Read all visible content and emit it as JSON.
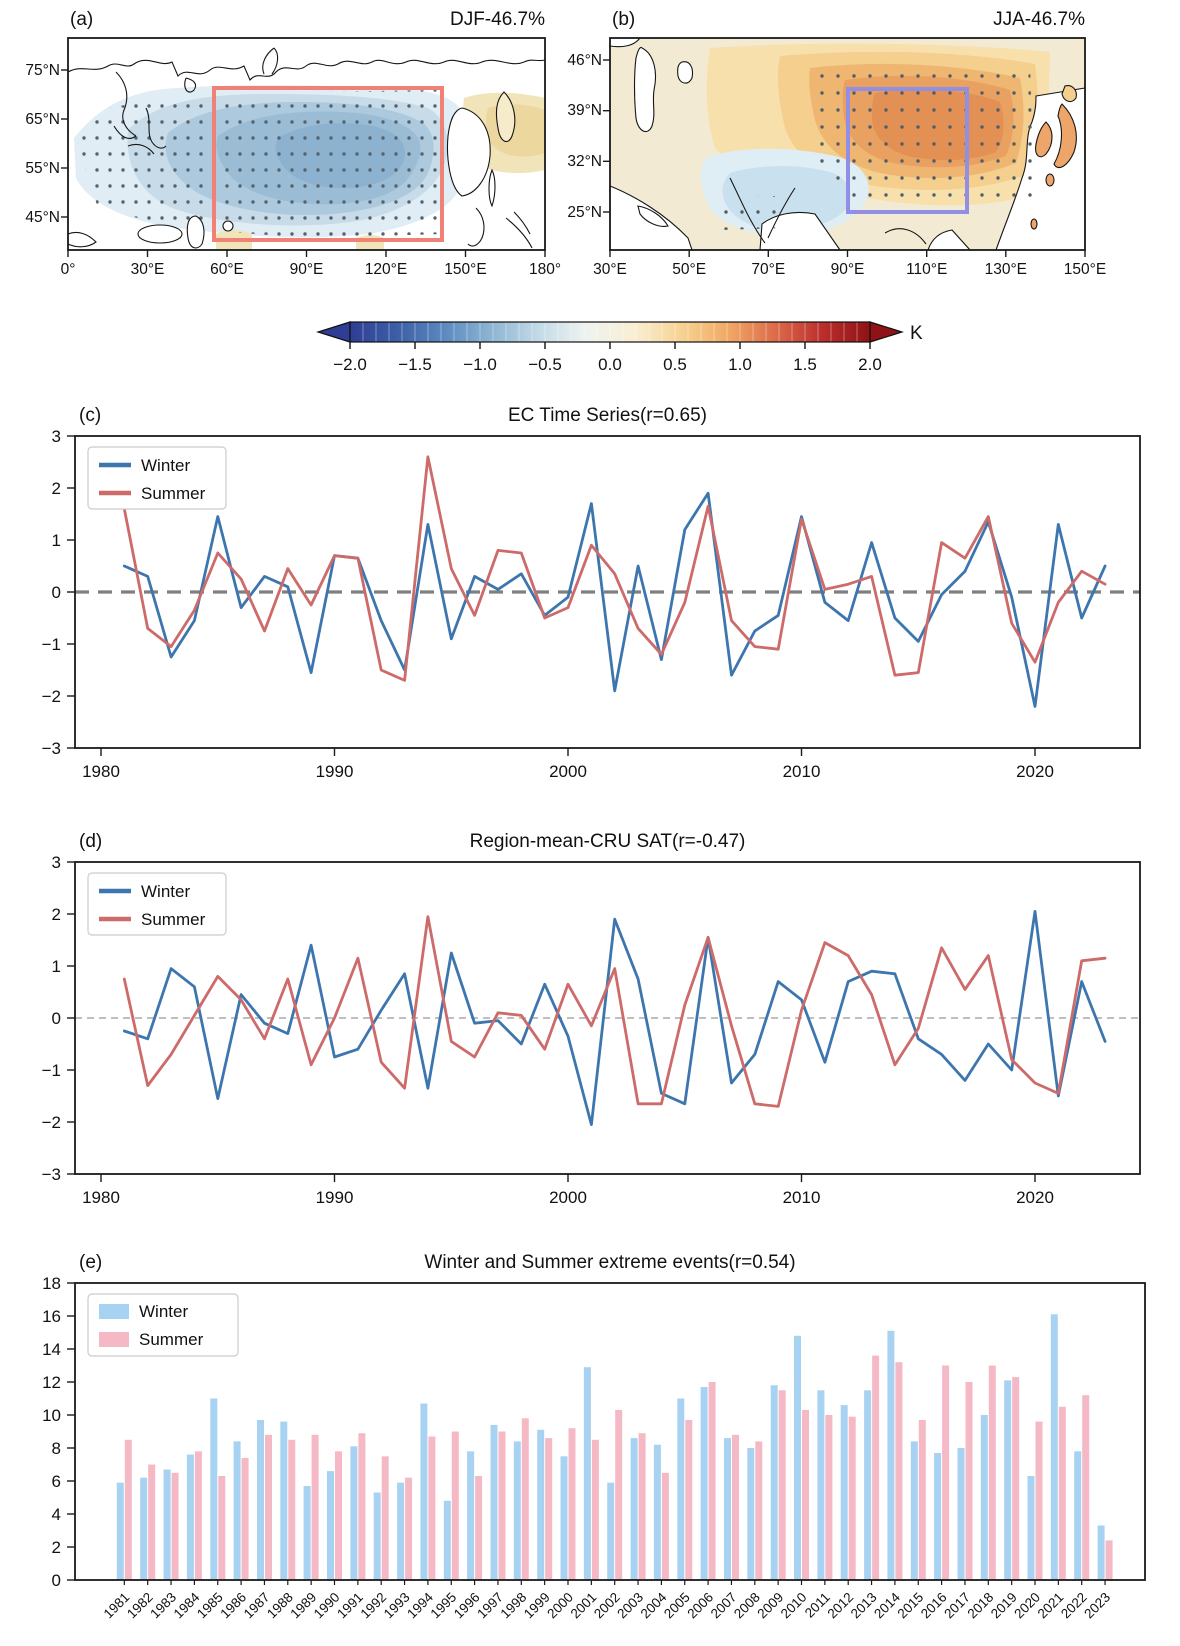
{
  "panel_a": {
    "label": "(a)",
    "title": "DJF-46.7%",
    "lat_ticks": [
      "75°N",
      "65°N",
      "55°N",
      "45°N"
    ],
    "lon_ticks": [
      "0°",
      "30°E",
      "60°E",
      "90°E",
      "120°E",
      "150°E",
      "180°"
    ],
    "box_color": "#ef8177",
    "shading": "negative (blue) temperature anomalies with stippling over central Eurasia"
  },
  "panel_b": {
    "label": "(b)",
    "title": "JJA-46.7%",
    "lat_ticks": [
      "46°N",
      "39°N",
      "32°N",
      "25°N"
    ],
    "lon_ticks": [
      "30°E",
      "50°E",
      "70°E",
      "90°E",
      "110°E",
      "130°E",
      "150°E"
    ],
    "box_color": "#908fe3",
    "shading": "positive (orange) temperature anomalies with stippling over East Asia"
  },
  "colorbar": {
    "tick_labels": [
      "−2.0",
      "−1.5",
      "−1.0",
      "−0.5",
      "0.0",
      "0.5",
      "1.0",
      "1.5",
      "2.0"
    ],
    "unit_label": "K",
    "colors": [
      "#2f3d94",
      "#3c5fa7",
      "#5c8ac0",
      "#8db5d3",
      "#c4dbe8",
      "#eef3f0",
      "#faeed5",
      "#f7d394",
      "#f0a964",
      "#dd6a4a",
      "#bb2e2c",
      "#8f1216"
    ]
  },
  "chart_data": [
    {
      "type": "line",
      "panel_label": "(c)",
      "title": "EC Time Series(r=0.65)",
      "xlabel": "",
      "ylabel": "",
      "x": [
        1981,
        1982,
        1983,
        1984,
        1985,
        1986,
        1987,
        1988,
        1989,
        1990,
        1991,
        1992,
        1993,
        1994,
        1995,
        1996,
        1997,
        1998,
        1999,
        2000,
        2001,
        2002,
        2003,
        2004,
        2005,
        2006,
        2007,
        2008,
        2009,
        2010,
        2011,
        2012,
        2013,
        2014,
        2015,
        2016,
        2017,
        2018,
        2019,
        2020,
        2021,
        2022,
        2023
      ],
      "xticks": [
        1980,
        1990,
        2000,
        2010,
        2020
      ],
      "xtick_labels": [
        "1980",
        "1990",
        "2000",
        "2010",
        "2020"
      ],
      "ylim": [
        -3,
        3
      ],
      "yticks": [
        3,
        2,
        1,
        0,
        -1,
        -2,
        -3
      ],
      "ytick_labels": [
        "3",
        "2",
        "1",
        "0",
        "−1",
        "−2",
        "−3"
      ],
      "zero_line": {
        "style": "dashed",
        "color": "#7f7f7f",
        "width": 3.2
      },
      "legend_position": "upper-left",
      "series": [
        {
          "name": "Winter",
          "color": "#3d76ae",
          "values": [
            0.5,
            0.3,
            -1.25,
            -0.55,
            1.45,
            -0.3,
            0.3,
            0.1,
            -1.55,
            0.7,
            0.65,
            -0.55,
            -1.5,
            1.3,
            -0.9,
            0.3,
            0.05,
            0.35,
            -0.45,
            -0.1,
            1.7,
            -1.9,
            0.5,
            -1.3,
            1.2,
            1.9,
            -1.6,
            -0.75,
            -0.45,
            1.45,
            -0.2,
            -0.55,
            0.95,
            -0.5,
            -0.95,
            -0.05,
            0.4,
            1.35,
            -0.1,
            -2.2,
            1.3,
            -0.5,
            0.5
          ]
        },
        {
          "name": "Summer",
          "color": "#cd6a6a",
          "values": [
            1.6,
            -0.7,
            -1.05,
            -0.35,
            0.75,
            0.25,
            -0.75,
            0.45,
            -0.25,
            0.7,
            0.65,
            -1.5,
            -1.7,
            2.6,
            0.45,
            -0.45,
            0.8,
            0.75,
            -0.5,
            -0.3,
            0.9,
            0.35,
            -0.7,
            -1.2,
            -0.2,
            1.65,
            -0.55,
            -1.05,
            -1.1,
            1.4,
            0.05,
            0.15,
            0.3,
            -1.6,
            -1.55,
            0.95,
            0.65,
            1.45,
            -0.6,
            -1.35,
            -0.2,
            0.4,
            0.15
          ]
        }
      ]
    },
    {
      "type": "line",
      "panel_label": "(d)",
      "title": "Region-mean-CRU SAT(r=-0.47)",
      "xlabel": "",
      "ylabel": "",
      "x": [
        1981,
        1982,
        1983,
        1984,
        1985,
        1986,
        1987,
        1988,
        1989,
        1990,
        1991,
        1992,
        1993,
        1994,
        1995,
        1996,
        1997,
        1998,
        1999,
        2000,
        2001,
        2002,
        2003,
        2004,
        2005,
        2006,
        2007,
        2008,
        2009,
        2010,
        2011,
        2012,
        2013,
        2014,
        2015,
        2016,
        2017,
        2018,
        2019,
        2020,
        2021,
        2022,
        2023
      ],
      "xticks": [
        1980,
        1990,
        2000,
        2010,
        2020
      ],
      "xtick_labels": [
        "1980",
        "1990",
        "2000",
        "2010",
        "2020"
      ],
      "ylim": [
        -3,
        3
      ],
      "yticks": [
        3,
        2,
        1,
        0,
        -1,
        -2,
        -3
      ],
      "ytick_labels": [
        "3",
        "2",
        "1",
        "0",
        "−1",
        "−2",
        "−3"
      ],
      "zero_line": {
        "style": "dashed",
        "color": "#999999",
        "width": 1.3
      },
      "legend_position": "upper-left",
      "series": [
        {
          "name": "Winter",
          "color": "#3d76ae",
          "values": [
            -0.25,
            -0.4,
            0.95,
            0.6,
            -1.55,
            0.45,
            -0.1,
            -0.3,
            1.4,
            -0.75,
            -0.6,
            0.15,
            0.85,
            -1.35,
            1.25,
            -0.1,
            -0.05,
            -0.5,
            0.65,
            -0.35,
            -2.05,
            1.9,
            0.75,
            -1.45,
            -1.65,
            1.55,
            -1.25,
            -0.7,
            0.7,
            0.35,
            -0.85,
            0.7,
            0.9,
            0.85,
            -0.4,
            -0.7,
            -1.2,
            -0.5,
            -1.0,
            2.05,
            -1.5,
            0.7,
            -0.45
          ]
        },
        {
          "name": "Summer",
          "color": "#cd6a6a",
          "values": [
            0.75,
            -1.3,
            -0.7,
            0.05,
            0.8,
            0.35,
            -0.4,
            0.75,
            -0.9,
            0.0,
            1.15,
            -0.85,
            -1.35,
            1.95,
            -0.45,
            -0.75,
            0.1,
            0.05,
            -0.6,
            0.65,
            -0.15,
            0.95,
            -1.65,
            -1.65,
            0.25,
            1.55,
            -0.15,
            -1.65,
            -1.7,
            0.15,
            1.45,
            1.2,
            0.45,
            -0.9,
            -0.2,
            1.35,
            0.55,
            1.2,
            -0.8,
            -1.25,
            -1.45,
            1.1,
            1.15
          ]
        }
      ]
    },
    {
      "type": "bar",
      "panel_label": "(e)",
      "title": "Winter and Summer extreme events(r=0.54)",
      "xlabel": "",
      "ylabel": "",
      "categories": [
        "1981",
        "1982",
        "1983",
        "1984",
        "1985",
        "1986",
        "1987",
        "1988",
        "1989",
        "1990",
        "1991",
        "1992",
        "1993",
        "1994",
        "1995",
        "1996",
        "1997",
        "1998",
        "1999",
        "2000",
        "2001",
        "2002",
        "2003",
        "2004",
        "2005",
        "2006",
        "2007",
        "2008",
        "2009",
        "2010",
        "2011",
        "2012",
        "2013",
        "2014",
        "2015",
        "2016",
        "2017",
        "2018",
        "2019",
        "2020",
        "2021",
        "2022",
        "2023"
      ],
      "ylim": [
        0,
        18
      ],
      "yticks": [
        0,
        2,
        4,
        6,
        8,
        10,
        12,
        14,
        16,
        18
      ],
      "ytick_labels": [
        "0",
        "2",
        "4",
        "6",
        "8",
        "10",
        "12",
        "14",
        "16",
        "18"
      ],
      "legend_position": "upper-left",
      "series": [
        {
          "name": "Winter",
          "color": "#a8d2f2",
          "values": [
            5.9,
            6.2,
            6.7,
            7.6,
            11.0,
            8.4,
            9.7,
            9.6,
            5.7,
            6.6,
            8.1,
            5.3,
            5.9,
            10.7,
            4.8,
            7.8,
            9.4,
            8.4,
            9.1,
            7.5,
            12.9,
            5.9,
            8.6,
            8.2,
            11.0,
            11.7,
            8.6,
            8.0,
            11.8,
            14.8,
            11.5,
            10.6,
            11.5,
            15.1,
            8.4,
            7.7,
            8.0,
            10.0,
            12.1,
            6.3,
            16.1,
            7.8,
            3.3
          ]
        },
        {
          "name": "Summer",
          "color": "#f5b9c6",
          "values": [
            8.5,
            7.0,
            6.5,
            7.8,
            6.3,
            7.4,
            8.8,
            8.5,
            8.8,
            7.8,
            8.9,
            7.5,
            6.2,
            8.7,
            9.0,
            6.3,
            9.0,
            9.8,
            8.6,
            9.2,
            8.5,
            10.3,
            8.9,
            6.5,
            9.7,
            12.0,
            8.8,
            8.4,
            11.5,
            10.3,
            10.0,
            9.9,
            13.6,
            13.2,
            9.7,
            13.0,
            12.0,
            13.0,
            12.3,
            9.6,
            10.5,
            11.2,
            2.4
          ]
        }
      ]
    }
  ]
}
